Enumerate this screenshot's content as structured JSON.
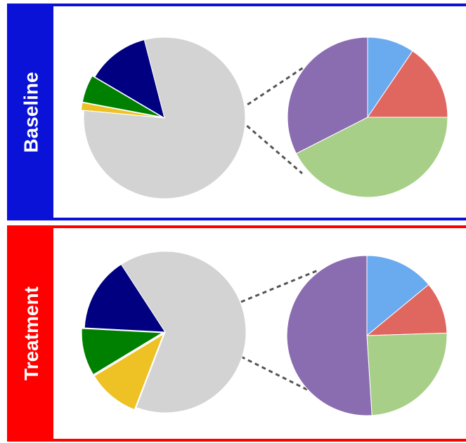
{
  "panels": [
    {
      "label": "Baseline",
      "color": "#0a12d8"
    },
    {
      "label": "Treatment",
      "color": "#ff0000"
    }
  ],
  "chart_data": [
    {
      "type": "pie",
      "group": "Baseline",
      "role": "main",
      "slices": [
        {
          "value": 80.5,
          "color": "#d3d3d3"
        },
        {
          "value": 1.5,
          "color": "#eec125"
        },
        {
          "value": 5.5,
          "color": "#008000"
        },
        {
          "value": 12.5,
          "color": "#000080"
        }
      ],
      "exploded_slices": [
        1,
        2
      ]
    },
    {
      "type": "pie",
      "group": "Baseline",
      "role": "detail",
      "slices": [
        {
          "value": 9.5,
          "color": "#6aaaee"
        },
        {
          "value": 15.5,
          "color": "#e06760"
        },
        {
          "value": 42.5,
          "color": "#a8cf88"
        },
        {
          "value": 32.5,
          "color": "#8a6cb0"
        }
      ]
    },
    {
      "type": "pie",
      "group": "Treatment",
      "role": "main",
      "slices": [
        {
          "value": 65,
          "color": "#d3d3d3"
        },
        {
          "value": 10.5,
          "color": "#eec125"
        },
        {
          "value": 9.5,
          "color": "#008000"
        },
        {
          "value": 15,
          "color": "#000080"
        }
      ],
      "exploded_slices": [
        1,
        2
      ]
    },
    {
      "type": "pie",
      "group": "Treatment",
      "role": "detail",
      "slices": [
        {
          "value": 14,
          "color": "#6aaaee"
        },
        {
          "value": 10.5,
          "color": "#e06760"
        },
        {
          "value": 24.5,
          "color": "#a8cf88"
        },
        {
          "value": 51,
          "color": "#8a6cb0"
        }
      ]
    }
  ]
}
